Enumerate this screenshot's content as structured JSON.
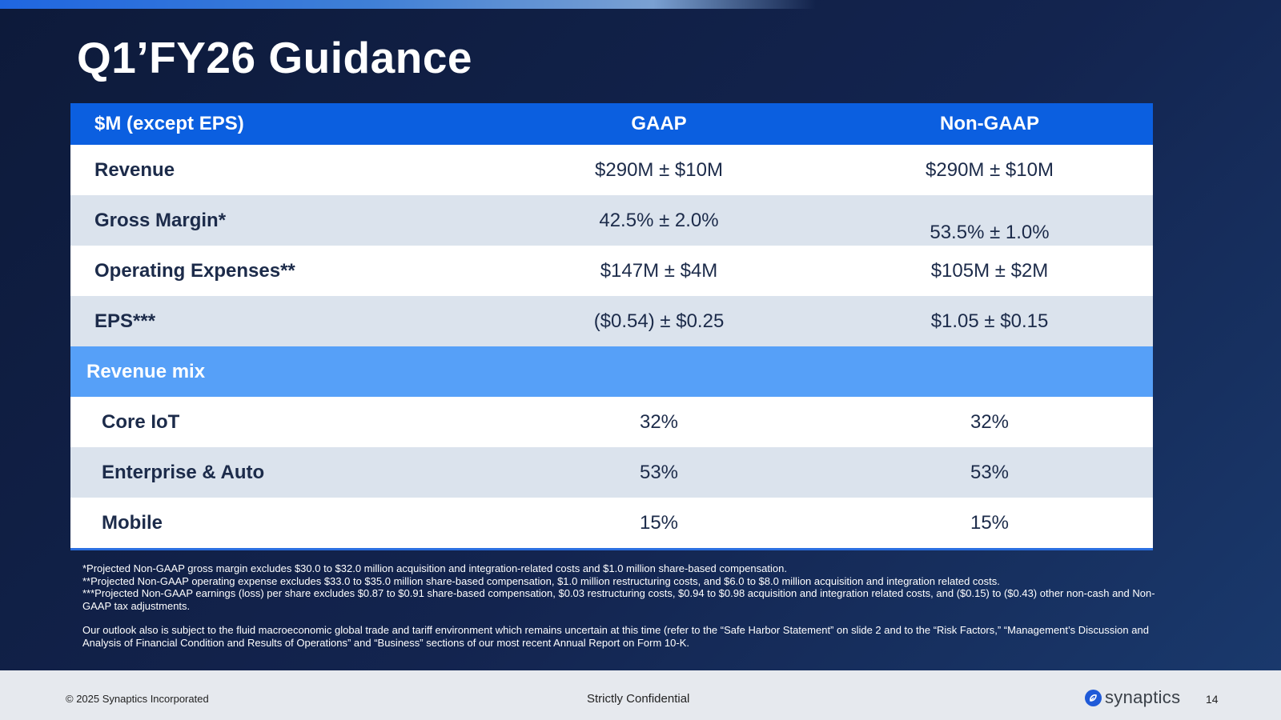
{
  "slide": {
    "title": "Q1’FY26 Guidance",
    "page_number": "14"
  },
  "table": {
    "headers": [
      "$M (except EPS)",
      "GAAP",
      "Non-GAAP"
    ],
    "rows": [
      {
        "label": "Revenue",
        "gaap": "$290M ± $10M",
        "non_gaap": "$290M ± $10M"
      },
      {
        "label": "Gross Margin*",
        "gaap": "42.5% ± 2.0%",
        "non_gaap": "53.5% ± 1.0%"
      },
      {
        "label": "Operating Expenses**",
        "gaap": "$147M ± $4M",
        "non_gaap": "$105M ± $2M"
      },
      {
        "label": "EPS***",
        "gaap": "($0.54) ± $0.25",
        "non_gaap": "$1.05 ± $0.15"
      }
    ],
    "section_label": "Revenue mix",
    "mix_rows": [
      {
        "label": "Core IoT",
        "gaap": "32%",
        "non_gaap": "32%"
      },
      {
        "label": "Enterprise & Auto",
        "gaap": "53%",
        "non_gaap": "53%"
      },
      {
        "label": "Mobile",
        "gaap": "15%",
        "non_gaap": "15%"
      }
    ]
  },
  "footnotes": {
    "gross_margin": "*Projected Non-GAAP gross margin excludes $30.0 to $32.0 million acquisition and integration-related costs and $1.0 million share-based compensation.",
    "opex": "**Projected Non-GAAP operating expense excludes $33.0 to $35.0 million share-based compensation, $1.0 million restructuring costs, and $6.0 to $8.0 million acquisition and integration related costs.",
    "eps": "***Projected Non-GAAP earnings (loss) per share excludes $0.87 to $0.91 share-based compensation, $0.03 restructuring costs, $0.94 to $0.98 acquisition and integration related costs, and ($0.15) to ($0.43) other non-cash and Non-GAAP tax adjustments.",
    "outlook": "Our outlook also is subject to the fluid macroeconomic global trade and tariff environment which remains uncertain at this time (refer to the “Safe Harbor Statement” on slide 2 and to the “Risk Factors,” “Management’s Discussion and Analysis of Financial Condition and Results of Operations” and “Business” sections of our most recent Annual Report on Form 10-K."
  },
  "footer": {
    "copyright": "© 2025 Synaptics Incorporated",
    "confidential": "Strictly Confidential",
    "logo_text": "synaptics",
    "logo_icon": "synaptics-logo-icon"
  },
  "colors": {
    "background": "#13244f",
    "header_blue": "#0b5fe0",
    "mix_blue": "#56a0f8",
    "row_shade": "#dbe3ed",
    "text_dark": "#1c2b4a"
  }
}
